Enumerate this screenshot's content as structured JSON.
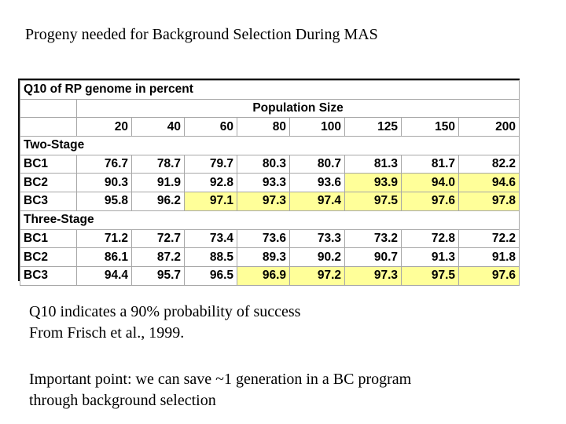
{
  "slide": {
    "title": "Progeny needed for Background Selection During MAS"
  },
  "table": {
    "title": "Q10 of RP genome in percent",
    "group_header": "Population Size",
    "columns": [
      "20",
      "40",
      "60",
      "80",
      "100",
      "125",
      "150",
      "200"
    ],
    "sections": [
      {
        "name": "Two-Stage",
        "rows": [
          {
            "label": "BC1",
            "values": [
              "76.7",
              "78.7",
              "79.7",
              "80.3",
              "80.7",
              "81.3",
              "81.7",
              "82.2"
            ],
            "highlight": [
              false,
              false,
              false,
              false,
              false,
              false,
              false,
              false
            ]
          },
          {
            "label": "BC2",
            "values": [
              "90.3",
              "91.9",
              "92.8",
              "93.3",
              "93.6",
              "93.9",
              "94.0",
              "94.6"
            ],
            "highlight": [
              false,
              false,
              false,
              false,
              false,
              true,
              true,
              true
            ]
          },
          {
            "label": "BC3",
            "values": [
              "95.8",
              "96.2",
              "97.1",
              "97.3",
              "97.4",
              "97.5",
              "97.6",
              "97.8"
            ],
            "highlight": [
              false,
              false,
              true,
              true,
              true,
              true,
              true,
              true
            ]
          }
        ]
      },
      {
        "name": "Three-Stage",
        "rows": [
          {
            "label": "BC1",
            "values": [
              "71.2",
              "72.7",
              "73.4",
              "73.6",
              "73.3",
              "73.2",
              "72.8",
              "72.2"
            ],
            "highlight": [
              false,
              false,
              false,
              false,
              false,
              false,
              false,
              false
            ]
          },
          {
            "label": "BC2",
            "values": [
              "86.1",
              "87.2",
              "88.5",
              "89.3",
              "90.2",
              "90.7",
              "91.3",
              "91.8"
            ],
            "highlight": [
              false,
              false,
              false,
              false,
              false,
              false,
              false,
              false
            ]
          },
          {
            "label": "BC3",
            "values": [
              "94.4",
              "95.7",
              "96.5",
              "96.9",
              "97.2",
              "97.3",
              "97.5",
              "97.6"
            ],
            "highlight": [
              false,
              false,
              false,
              true,
              true,
              true,
              true,
              true
            ]
          }
        ]
      }
    ],
    "highlight_color": "#ffff99"
  },
  "notes": {
    "line1": "Q10 indicates a 90% probability of success",
    "line2": "From Frisch et al., 1999.",
    "line3": "Important point: we can save ~1 generation in a BC program",
    "line4": "through background selection"
  }
}
